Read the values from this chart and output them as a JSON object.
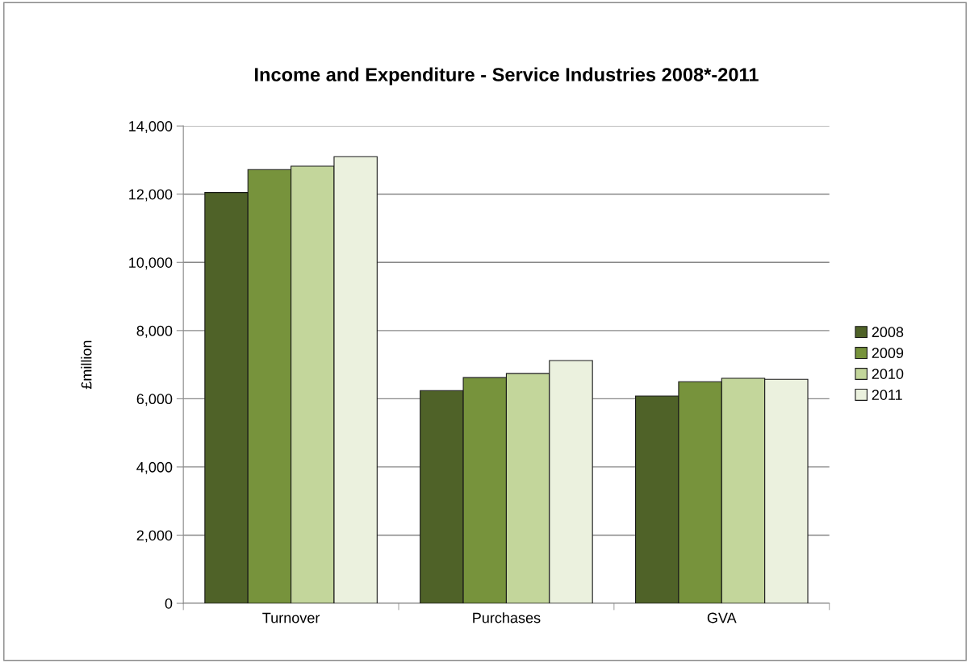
{
  "chart_data": {
    "type": "bar",
    "title": "Income and Expenditure - Service Industries 2008*-2011",
    "ylabel": "£million",
    "categories": [
      "Turnover",
      "Purchases",
      "GVA"
    ],
    "series": [
      {
        "name": "2008",
        "color": "#4f6228",
        "values": [
          12050,
          6240,
          6080
        ]
      },
      {
        "name": "2009",
        "color": "#77933c",
        "values": [
          12720,
          6620,
          6500
        ]
      },
      {
        "name": "2010",
        "color": "#c3d69b",
        "values": [
          12820,
          6740,
          6600
        ]
      },
      {
        "name": "2011",
        "color": "#ebf1de",
        "values": [
          13100,
          7120,
          6570
        ]
      }
    ],
    "ylim": [
      0,
      14000
    ],
    "yticks": [
      {
        "value": 0,
        "label": "0"
      },
      {
        "value": 2000,
        "label": "2,000"
      },
      {
        "value": 4000,
        "label": "4,000"
      },
      {
        "value": 6000,
        "label": "6,000"
      },
      {
        "value": 8000,
        "label": "8,000"
      },
      {
        "value": 10000,
        "label": "10,000"
      },
      {
        "value": 12000,
        "label": "12,000"
      },
      {
        "value": 14000,
        "label": "14,000"
      }
    ],
    "grid": "y",
    "legend": "right"
  }
}
